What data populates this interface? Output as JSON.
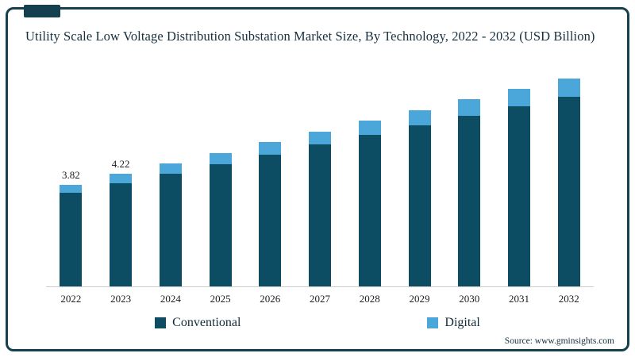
{
  "chart": {
    "title": "Utility Scale Low Voltage Distribution Substation Market Size, By Technology, 2022 - 2032 (USD Billion)"
  },
  "chart_data": {
    "type": "bar",
    "stacked": true,
    "title": "Utility Scale Low Voltage Distribution Substation Market Size, By Technology, 2022 - 2032 (USD Billion)",
    "xlabel": "",
    "ylabel": "",
    "categories": [
      "2022",
      "2023",
      "2024",
      "2025",
      "2026",
      "2027",
      "2028",
      "2029",
      "2030",
      "2031",
      "2032"
    ],
    "series": [
      {
        "name": "Conventional",
        "color": "#0d4d63",
        "values": [
          3.52,
          3.88,
          4.24,
          4.6,
          4.96,
          5.32,
          5.68,
          6.04,
          6.4,
          6.76,
          7.12
        ]
      },
      {
        "name": "Digital",
        "color": "#4ba6d9",
        "values": [
          0.3,
          0.34,
          0.38,
          0.42,
          0.46,
          0.5,
          0.54,
          0.58,
          0.62,
          0.66,
          0.7
        ]
      }
    ],
    "totals": [
      3.82,
      4.22,
      4.62,
      5.02,
      5.42,
      5.82,
      6.22,
      6.62,
      7.02,
      7.42,
      7.82
    ],
    "data_labels": [
      "3.82",
      "4.22",
      "",
      "",
      "",
      "",
      "",
      "",
      "",
      "",
      ""
    ],
    "ylim": [
      0,
      8.4
    ],
    "grid": false,
    "legend_position": "bottom"
  },
  "colors": {
    "border": "#14404f",
    "conventional": "#0d4d63",
    "digital": "#4ba6d9"
  },
  "footer": {
    "source": "Source: www.gminsights.com"
  }
}
